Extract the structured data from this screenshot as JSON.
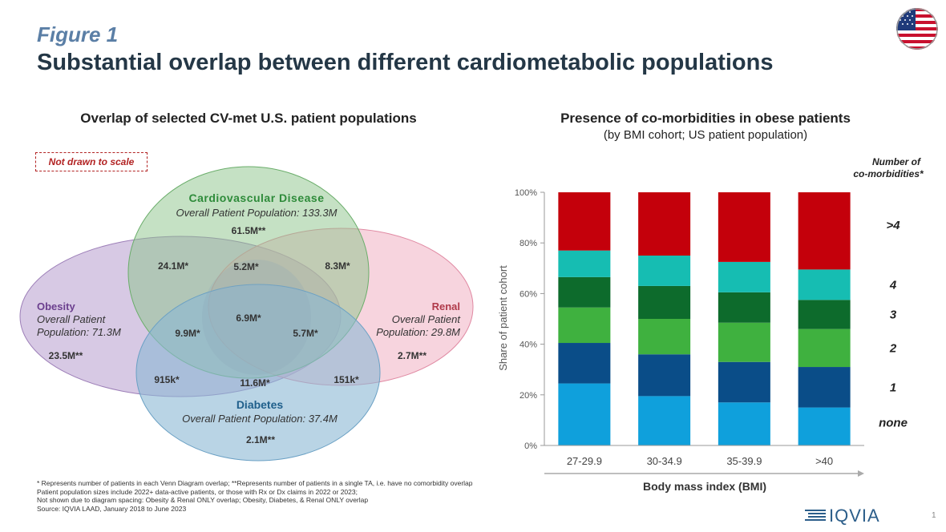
{
  "header": {
    "figure_label": "Figure 1",
    "title": "Substantial overlap between different cardiometabolic populations"
  },
  "venn": {
    "title": "Overlap of selected CV-met U.S. patient populations",
    "note": "Not drawn to scale",
    "sets": [
      {
        "name": "Cardiovascular Disease",
        "population": "Overall Patient Population: 133.3M",
        "color": "#2e8b3a",
        "fill": "#8bc48a"
      },
      {
        "name": "Obesity",
        "population_line1": "Overall Patient",
        "population_line2": "Population: 71.3M",
        "color": "#6b3f8e",
        "fill": "#b79ccd"
      },
      {
        "name": "Renal",
        "population_line1": "Overall Patient",
        "population_line2": "Population: 29.8M",
        "color": "#b03a4a",
        "fill": "#f0a9bd"
      },
      {
        "name": "Diabetes",
        "population": "Overall Patient Population: 37.4M",
        "color": "#1f5f8b",
        "fill": "#8ab8d4"
      }
    ],
    "values": {
      "cv_only": "61.5M**",
      "obesity_cv": "24.1M*",
      "obesity_cv_renal": "5.2M*",
      "cv_renal": "8.3M*",
      "all_four": "6.9M*",
      "obesity_cv_diabetes": "9.9M*",
      "cv_renal_diabetes": "5.7M*",
      "obesity_only": "23.5M**",
      "renal_only": "2.7M**",
      "obesity_diabetes": "915k*",
      "cv_diabetes": "11.6M*",
      "renal_diabetes": "151k*",
      "diabetes_only": "2.1M**"
    }
  },
  "footnotes": [
    "* Represents number of patients in each Venn Diagram overlap; **Represents number of patients in a single TA, i.e. have no comorbidity overlap",
    "Patient population sizes include 2022+ data-active patients, or those with Rx or Dx claims in 2022 or 2023;",
    "Not shown due to diagram spacing: Obesity & Renal ONLY overlap; Obesity, Diabetes, & Renal ONLY overlap",
    "Source: IQVIA LAAD, January 2018 to June 2023"
  ],
  "brand": "IQVIA",
  "page_number": "1",
  "chart_data": {
    "type": "bar",
    "stacked": true,
    "title": "Presence of co-morbidities in obese patients",
    "subtitle": "(by BMI cohort; US patient population)",
    "xlabel": "Body mass index (BMI)",
    "ylabel": "Share of patient cohort",
    "legend_title": "Number of co-morbidities*",
    "legend_title_line1": "Number of",
    "legend_title_line2": "co-morbidities*",
    "legend_placement": "right",
    "ylim": [
      0,
      100
    ],
    "yticks": [
      "0%",
      "20%",
      "40%",
      "60%",
      "80%",
      "100%"
    ],
    "grid": false,
    "categories": [
      "27-29.9",
      "30-34.9",
      "35-39.9",
      ">40"
    ],
    "series": [
      {
        "name": "none",
        "color": "#0fa0dc",
        "values": [
          24.5,
          19.5,
          17,
          15
        ]
      },
      {
        "name": "1",
        "color": "#0a4d88",
        "values": [
          16,
          16.5,
          16,
          16
        ]
      },
      {
        "name": "2",
        "color": "#3fb13f",
        "values": [
          14,
          14,
          15.5,
          15
        ]
      },
      {
        "name": "3",
        "color": "#0d6b2c",
        "values": [
          12,
          13,
          12,
          11.5
        ]
      },
      {
        "name": "4",
        "color": "#16bdb2",
        "values": [
          10.5,
          12,
          12,
          12
        ]
      },
      {
        "name": ">4",
        "color": "#c4000b",
        "values": [
          23,
          25,
          27.5,
          30.5
        ]
      }
    ]
  }
}
